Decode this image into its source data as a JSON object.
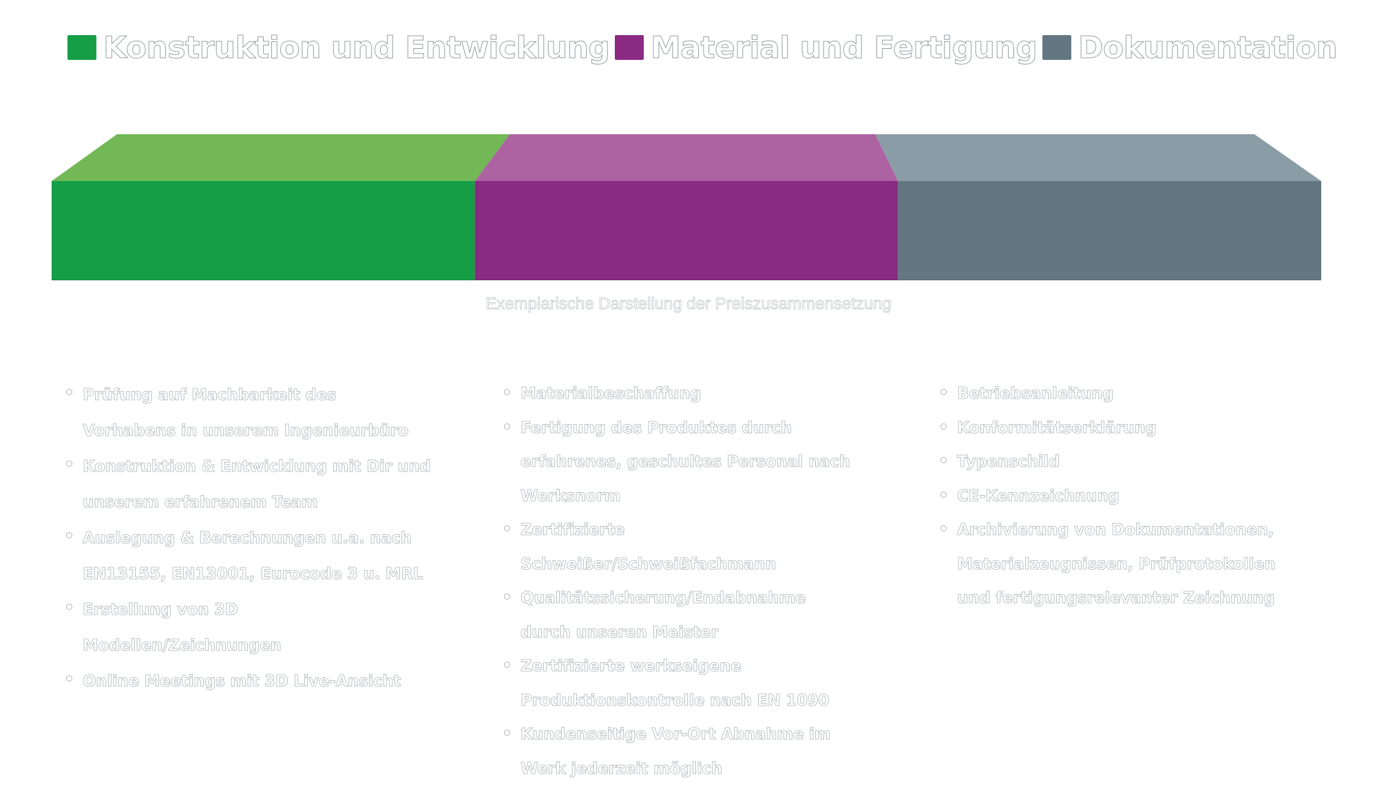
{
  "chart_data": {
    "type": "bar",
    "orientation": "horizontal-stacked",
    "series": [
      {
        "name": "Konstruktion und Entwicklung",
        "values": [
          1
        ],
        "color": "#169e46",
        "top_color": "#72b856"
      },
      {
        "name": "Material und Fertigung",
        "values": [
          1
        ],
        "color": "#8a2a82",
        "top_color": "#ad62a2"
      },
      {
        "name": "Dokumentation",
        "values": [
          1
        ],
        "color": "#637782",
        "top_color": "#8a9ca6"
      }
    ],
    "caption": "Exemplarische Darstellung der Preiszusammensetzung",
    "legend_position": "top",
    "grid": false
  },
  "legend": [
    {
      "label": "Konstruktion und Entwicklung",
      "color": "#169e46"
    },
    {
      "label": "Material und Fertigung",
      "color": "#8a2a82"
    },
    {
      "label": "Dokumentation",
      "color": "#637782"
    }
  ],
  "details": [
    {
      "items": [
        "Prüfung auf Machbarkeit des\nVorhabens in unserem Ingenieurbüro",
        "Konstruktion & Entwicklung mit Dir und\nunserem erfahrenem Team",
        "Auslegung & Berechnungen u.a. nach\nEN13155, EN13001, Eurocode 3 u. MRL",
        "Erstellung von 3D\nModellen/Zeichnungen",
        "Online Meetings mit 3D Live-Ansicht"
      ]
    },
    {
      "items": [
        "Materialbeschaffung",
        "Fertigung des Produktes durch\nerfahrenes, geschultes Personal nach\nWerksnorm",
        "Zertifizierte\nSchweißer/Schweißfachmann",
        "Qualitätssicherung/Endabnahme\ndurch unseren Meister",
        "Zertifizierte werkseigene\nProduktionskontrolle nach EN 1090",
        "Kundenseitige Vor-Ort Abnahme im\nWerk jederzeit möglich"
      ]
    },
    {
      "items": [
        "Betriebsanleitung",
        "Konformitätserklärung",
        "Typenschild",
        "CE-Kennzeichnung",
        "Archivierung von Dokumentationen,\nMaterialzeugnissen, Prüfprotokollen\nund fertigungsrelevanter Zeichnung"
      ]
    }
  ]
}
